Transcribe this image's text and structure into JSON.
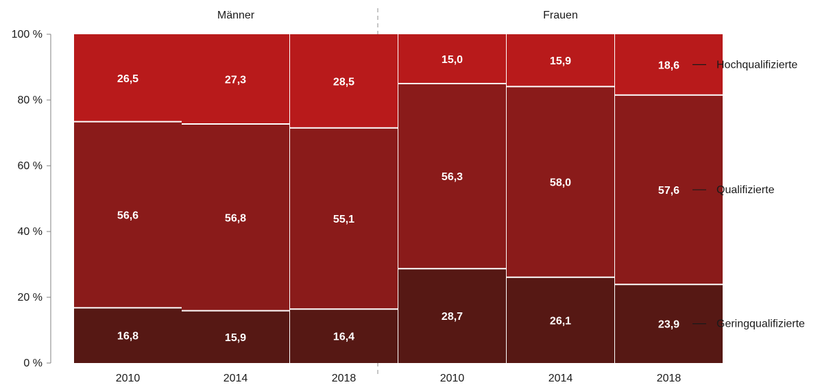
{
  "chart_data": {
    "type": "bar",
    "stacked": true,
    "percent_stacked": true,
    "y_axis": {
      "ylim": [
        0,
        100
      ],
      "tick_labels": [
        "0 %",
        "20 %",
        "40 %",
        "60 %",
        "80 %",
        "100 %"
      ],
      "tick_values": [
        0,
        20,
        40,
        60,
        80,
        100
      ]
    },
    "groups": [
      {
        "label": "Männer",
        "categories": [
          "2010",
          "2014",
          "2018"
        ],
        "series": [
          {
            "name": "Geringqualifizierte",
            "values": [
              16.8,
              15.9,
              16.4
            ],
            "labels": [
              "16,8",
              "15,9",
              "16,4"
            ]
          },
          {
            "name": "Qualifizierte",
            "values": [
              56.6,
              56.8,
              55.1
            ],
            "labels": [
              "56,6",
              "56,8",
              "55,1"
            ]
          },
          {
            "name": "Hochqualifizierte",
            "values": [
              26.5,
              27.3,
              28.5
            ],
            "labels": [
              "26,5",
              "27,3",
              "28,5"
            ]
          }
        ]
      },
      {
        "label": "Frauen",
        "categories": [
          "2010",
          "2014",
          "2018"
        ],
        "series": [
          {
            "name": "Geringqualifizierte",
            "values": [
              28.7,
              26.1,
              23.9
            ],
            "labels": [
              "28,7",
              "26,1",
              "23,9"
            ]
          },
          {
            "name": "Qualifizierte",
            "values": [
              56.3,
              58.0,
              57.6
            ],
            "labels": [
              "56,3",
              "58,0",
              "57,6"
            ]
          },
          {
            "name": "Hochqualifizierte",
            "values": [
              15.0,
              15.9,
              18.6
            ],
            "labels": [
              "15,0",
              "15,9",
              "18,6"
            ]
          }
        ]
      }
    ],
    "legend": {
      "placement": "right",
      "entries": [
        "Hochqualifizierte",
        "Qualifizierte",
        "Geringqualifizierte"
      ]
    },
    "colors": {
      "Geringqualifizierte": "#561814",
      "Qualifizierte": "#8a1b1a",
      "Hochqualifizierte": "#b81a1b",
      "divider": "#b3b3b3",
      "segment_border": "#ffffff"
    },
    "grid": false,
    "group_divider": "dashed"
  }
}
